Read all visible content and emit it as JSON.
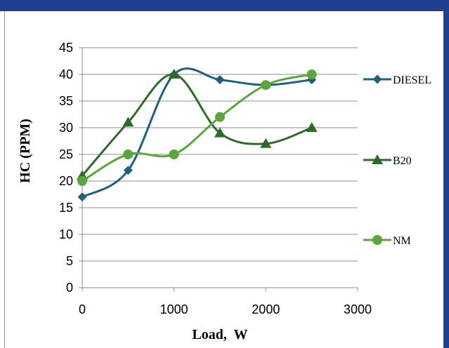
{
  "chart_data": {
    "type": "line",
    "xlabel": "Load,  W",
    "ylabel": "HC (PPM)",
    "xlim": [
      0,
      3000
    ],
    "ylim": [
      0,
      45
    ],
    "x_ticks": [
      0,
      1000,
      2000,
      3000
    ],
    "y_ticks": [
      0,
      5,
      10,
      15,
      20,
      25,
      30,
      35,
      40,
      45
    ],
    "grid": "horizontal",
    "legend_position": "right",
    "smooth": true,
    "x": [
      0,
      500,
      1000,
      1500,
      2000,
      2500
    ],
    "series": [
      {
        "name": "DIESEL",
        "values": [
          17,
          22,
          40,
          39,
          38,
          39
        ],
        "color": "#1f5f7f",
        "marker": "diamond"
      },
      {
        "name": "B20",
        "values": [
          21,
          31,
          40,
          29,
          27,
          30
        ],
        "color": "#2e6b2a",
        "marker": "triangle"
      },
      {
        "name": "NM",
        "values": [
          20,
          25,
          25,
          32,
          38,
          40
        ],
        "color": "#5aa63c",
        "marker": "circle"
      }
    ]
  }
}
